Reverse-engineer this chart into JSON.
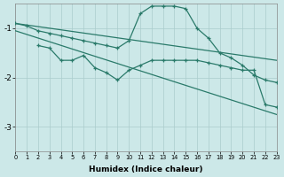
{
  "xlabel": "Humidex (Indice chaleur)",
  "bg_color": "#cce8e8",
  "grid_color": "#aacccc",
  "line_color": "#2a7a6a",
  "xlim": [
    0,
    23
  ],
  "ylim": [
    -3.5,
    -0.5
  ],
  "yticks": [
    -3,
    -2,
    -1
  ],
  "xticks": [
    0,
    1,
    2,
    3,
    4,
    5,
    6,
    7,
    8,
    9,
    10,
    11,
    12,
    13,
    14,
    15,
    16,
    17,
    18,
    19,
    20,
    21,
    22,
    23
  ],
  "line1_x": [
    0,
    23
  ],
  "line1_y": [
    -0.9,
    -1.65
  ],
  "line2_x": [
    0,
    23
  ],
  "line2_y": [
    -1.05,
    -2.75
  ],
  "line3_x": [
    2,
    3,
    4,
    5,
    6,
    7,
    8,
    9,
    10,
    11,
    12,
    13,
    14,
    15,
    16,
    17,
    18,
    19,
    20,
    21,
    22,
    23
  ],
  "line3_y": [
    -1.35,
    -1.4,
    -1.65,
    -1.65,
    -1.55,
    -1.8,
    -1.9,
    -2.05,
    -1.85,
    -1.75,
    -1.65,
    -1.65,
    -1.65,
    -1.65,
    -1.65,
    -1.7,
    -1.75,
    -1.8,
    -1.85,
    -1.85,
    -2.55,
    -2.6
  ],
  "line4_x": [
    0,
    1,
    2,
    3,
    4,
    5,
    6,
    7,
    8,
    9,
    10,
    11,
    12,
    13,
    14,
    15,
    16,
    17,
    18,
    19,
    20,
    21,
    22,
    23
  ],
  "line4_y": [
    -0.9,
    -0.95,
    -1.05,
    -1.1,
    -1.15,
    -1.2,
    -1.25,
    -1.3,
    -1.35,
    -1.4,
    -1.25,
    -0.7,
    -0.55,
    -0.55,
    -0.55,
    -0.6,
    -1.0,
    -1.2,
    -1.5,
    -1.6,
    -1.75,
    -1.95,
    -2.05,
    -2.1
  ]
}
